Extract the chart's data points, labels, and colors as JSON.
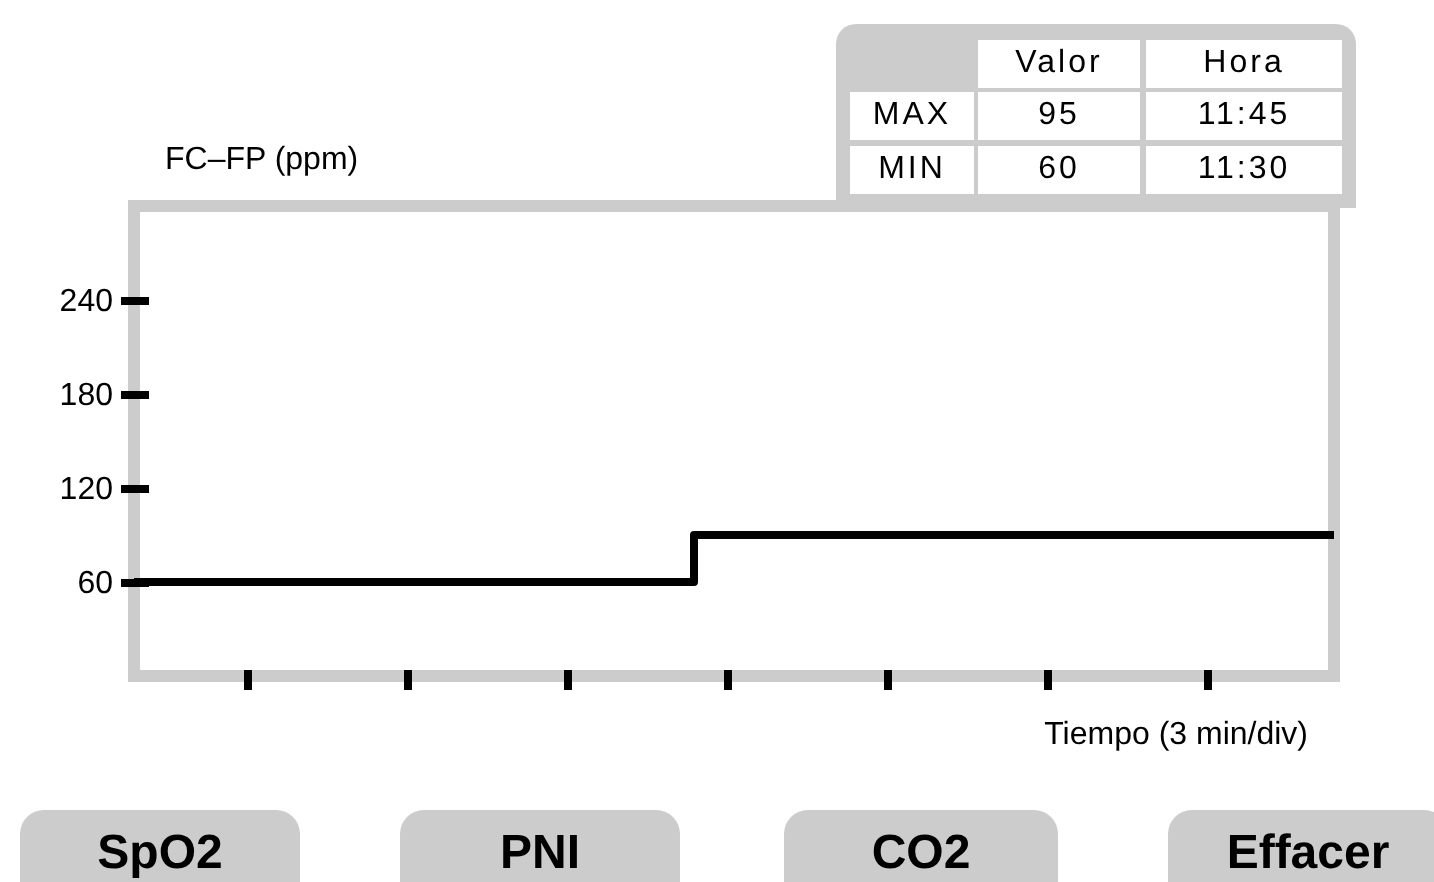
{
  "chart_data": {
    "type": "step",
    "ylabel": "FC–FP (ppm)",
    "xlabel": "Tiempo (3 min/div)",
    "categories": [
      null,
      null,
      null,
      null,
      null,
      null,
      null,
      null,
      null,
      null,
      null,
      null,
      null,
      null,
      null,
      null,
      null,
      null,
      null,
      null,
      null,
      null,
      null,
      null,
      null,
      null,
      null,
      null,
      null,
      null,
      null
    ],
    "series": [
      {
        "color": "#000000",
        "values": [
          60,
          60,
          60,
          60,
          60,
          60,
          60,
          60,
          60,
          60,
          60,
          60,
          60,
          60,
          90,
          90,
          90,
          90,
          90,
          90,
          90,
          90,
          90,
          90,
          90,
          90,
          90,
          90,
          90,
          90,
          90
        ]
      }
    ],
    "ylim": [
      0,
      300
    ],
    "yticks": [
      60,
      120,
      180,
      240
    ],
    "tick_labels": "y",
    "annotations": [
      "Valor",
      "Hora",
      "MAX",
      "95",
      "11:45",
      "MIN",
      "60",
      "11:30",
      "SpO2",
      "PNI",
      "CO2",
      "Effacer"
    ]
  }
}
